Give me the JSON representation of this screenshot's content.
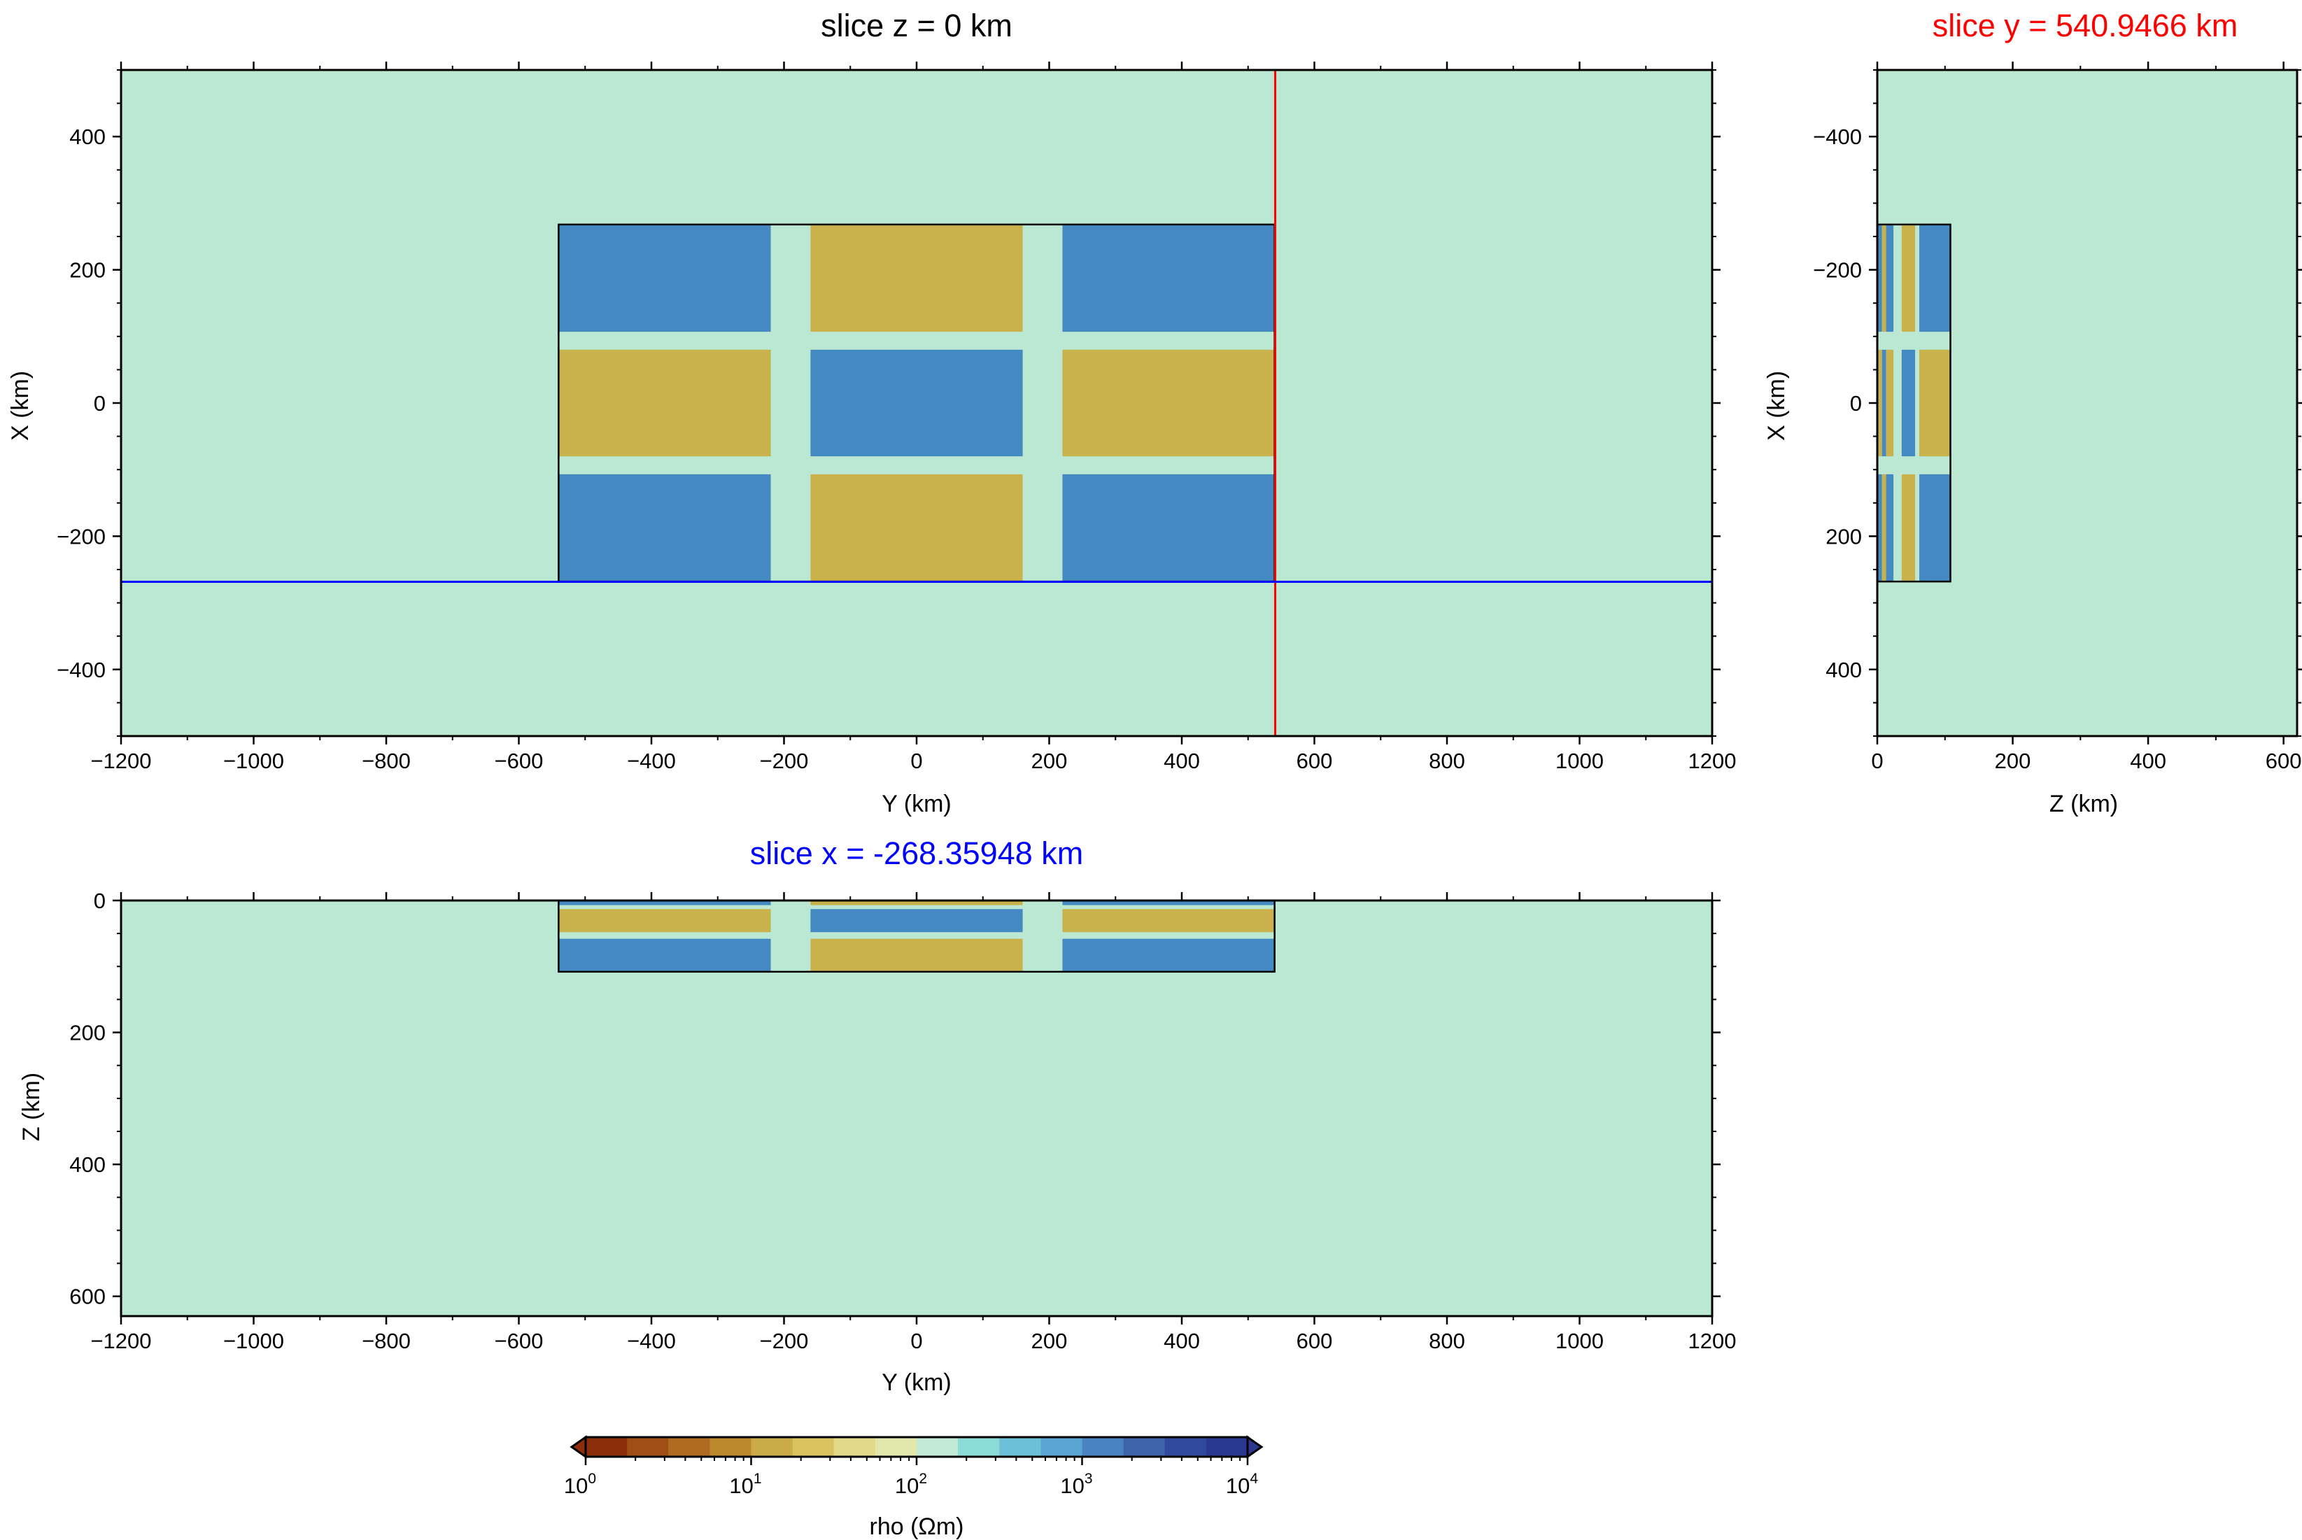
{
  "colors": {
    "background": "#bbe8d2",
    "high": "#4589c2",
    "low": "#c9b24c",
    "slice_y_line": "#ff0000",
    "slice_x_line": "#0000ff"
  },
  "chart_data": [
    {
      "type": "heatmap",
      "title": "slice z = 0 km",
      "xlabel": "Y (km)",
      "ylabel": "X (km)",
      "xlim": [
        -1200,
        1200
      ],
      "ylim": [
        -500,
        500
      ],
      "xticks": [
        "−1200",
        "−1000",
        "−800",
        "−600",
        "−400",
        "−200",
        "0",
        "200",
        "400",
        "600",
        "800",
        "1000",
        "1200"
      ],
      "yticks": [
        "400",
        "200",
        "0",
        "−200",
        "−400"
      ],
      "background_rho": 100,
      "anomaly_cells": [
        {
          "y": [
            -540,
            -220
          ],
          "x": [
            107,
            268
          ],
          "rho": 1000
        },
        {
          "y": [
            -160,
            160
          ],
          "x": [
            107,
            268
          ],
          "rho": 10
        },
        {
          "y": [
            220,
            540
          ],
          "x": [
            107,
            268
          ],
          "rho": 1000
        },
        {
          "y": [
            -540,
            -220
          ],
          "x": [
            -80,
            80
          ],
          "rho": 10
        },
        {
          "y": [
            -160,
            160
          ],
          "x": [
            -80,
            80
          ],
          "rho": 1000
        },
        {
          "y": [
            220,
            540
          ],
          "x": [
            -80,
            80
          ],
          "rho": 10
        },
        {
          "y": [
            -540,
            -220
          ],
          "x": [
            -268,
            -107
          ],
          "rho": 1000
        },
        {
          "y": [
            -160,
            160
          ],
          "x": [
            -268,
            -107
          ],
          "rho": 10
        },
        {
          "y": [
            220,
            540
          ],
          "x": [
            -268,
            -107
          ],
          "rho": 1000
        }
      ],
      "lines": [
        {
          "name": "slice y",
          "orientation": "vertical",
          "value": 540.9466
        },
        {
          "name": "slice x",
          "orientation": "horizontal",
          "value": -268.35948
        }
      ]
    },
    {
      "type": "heatmap",
      "title": "slice y = 540.9466 km",
      "xlabel": "Z (km)",
      "ylabel": "X (km)",
      "xlim": [
        0,
        620
      ],
      "ylim": [
        -500,
        500
      ],
      "y_inverted": true,
      "xticks": [
        "0",
        "200",
        "400",
        "600"
      ],
      "yticks": [
        "−400",
        "−200",
        "0",
        "200",
        "400"
      ],
      "background_rho": 100,
      "anomaly_cells": [
        {
          "z": [
            0,
            7
          ],
          "x": [
            -268,
            -107
          ],
          "rho": 1000
        },
        {
          "z": [
            7,
            13
          ],
          "x": [
            -268,
            -107
          ],
          "rho": 10
        },
        {
          "z": [
            13,
            24
          ],
          "x": [
            -268,
            -107
          ],
          "rho": 1000
        },
        {
          "z": [
            24,
            36
          ],
          "x": [
            -268,
            -107
          ],
          "rho": 100
        },
        {
          "z": [
            36,
            56
          ],
          "x": [
            -268,
            -107
          ],
          "rho": 10
        },
        {
          "z": [
            56,
            62
          ],
          "x": [
            -268,
            -107
          ],
          "rho": 100
        },
        {
          "z": [
            62,
            108
          ],
          "x": [
            -268,
            -107
          ],
          "rho": 1000
        },
        {
          "z": [
            0,
            7
          ],
          "x": [
            -80,
            80
          ],
          "rho": 10
        },
        {
          "z": [
            7,
            13
          ],
          "x": [
            -80,
            80
          ],
          "rho": 1000
        },
        {
          "z": [
            13,
            24
          ],
          "x": [
            -80,
            80
          ],
          "rho": 10
        },
        {
          "z": [
            24,
            36
          ],
          "x": [
            -80,
            80
          ],
          "rho": 100
        },
        {
          "z": [
            36,
            56
          ],
          "x": [
            -80,
            80
          ],
          "rho": 1000
        },
        {
          "z": [
            56,
            62
          ],
          "x": [
            -80,
            80
          ],
          "rho": 100
        },
        {
          "z": [
            62,
            108
          ],
          "x": [
            -80,
            80
          ],
          "rho": 10
        },
        {
          "z": [
            0,
            7
          ],
          "x": [
            107,
            268
          ],
          "rho": 1000
        },
        {
          "z": [
            7,
            13
          ],
          "x": [
            107,
            268
          ],
          "rho": 10
        },
        {
          "z": [
            13,
            24
          ],
          "x": [
            107,
            268
          ],
          "rho": 1000
        },
        {
          "z": [
            24,
            36
          ],
          "x": [
            107,
            268
          ],
          "rho": 100
        },
        {
          "z": [
            36,
            56
          ],
          "x": [
            107,
            268
          ],
          "rho": 10
        },
        {
          "z": [
            56,
            62
          ],
          "x": [
            107,
            268
          ],
          "rho": 100
        },
        {
          "z": [
            62,
            108
          ],
          "x": [
            107,
            268
          ],
          "rho": 1000
        }
      ]
    },
    {
      "type": "heatmap",
      "title": "slice x = -268.35948 km",
      "xlabel": "Y (km)",
      "ylabel": "Z (km)",
      "xlim": [
        -1200,
        1200
      ],
      "ylim": [
        0,
        630
      ],
      "y_inverted": true,
      "xticks": [
        "−1200",
        "−1000",
        "−800",
        "−600",
        "−400",
        "−200",
        "0",
        "200",
        "400",
        "600",
        "800",
        "1000",
        "1200"
      ],
      "yticks": [
        "0",
        "200",
        "400",
        "600"
      ],
      "background_rho": 100,
      "anomaly_cells": [
        {
          "y": [
            -540,
            -220
          ],
          "z": [
            0,
            7
          ],
          "rho": 1000
        },
        {
          "y": [
            -160,
            160
          ],
          "z": [
            0,
            7
          ],
          "rho": 10
        },
        {
          "y": [
            220,
            540
          ],
          "z": [
            0,
            7
          ],
          "rho": 1000
        },
        {
          "y": [
            -540,
            -220
          ],
          "z": [
            13,
            48
          ],
          "rho": 10
        },
        {
          "y": [
            -160,
            160
          ],
          "z": [
            13,
            48
          ],
          "rho": 1000
        },
        {
          "y": [
            220,
            540
          ],
          "z": [
            13,
            48
          ],
          "rho": 10
        },
        {
          "y": [
            -540,
            -220
          ],
          "z": [
            58,
            108
          ],
          "rho": 1000
        },
        {
          "y": [
            -160,
            160
          ],
          "z": [
            58,
            108
          ],
          "rho": 10
        },
        {
          "y": [
            220,
            540
          ],
          "z": [
            58,
            108
          ],
          "rho": 1000
        }
      ]
    }
  ],
  "colorbar": {
    "label": "rho (Ωm)",
    "ticks": [
      {
        "base": "10",
        "exp": "0"
      },
      {
        "base": "10",
        "exp": "1"
      },
      {
        "base": "10",
        "exp": "2"
      },
      {
        "base": "10",
        "exp": "3"
      },
      {
        "base": "10",
        "exp": "4"
      }
    ],
    "range_log10": [
      0,
      4
    ],
    "colors": [
      "#8c2e0a",
      "#a04f14",
      "#b06a21",
      "#bb8a2d",
      "#c9ac48",
      "#d9c460",
      "#e2d98a",
      "#e2e7ac",
      "#c2ead4",
      "#8bdbd7",
      "#6cc1d8",
      "#5aa4d2",
      "#4a84c0",
      "#3d63aa",
      "#2f4a9c",
      "#2a3891"
    ]
  }
}
